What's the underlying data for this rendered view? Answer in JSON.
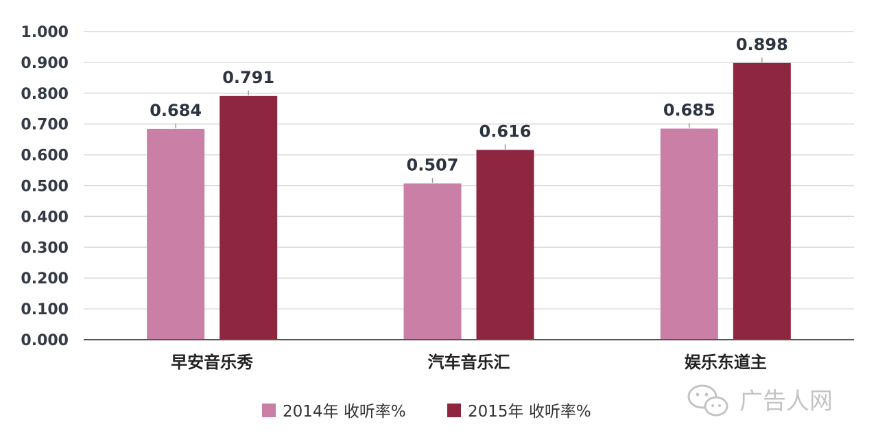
{
  "chart_data": {
    "type": "bar",
    "title": "",
    "xlabel": "",
    "ylabel": "",
    "categories": [
      "早安音乐秀",
      "汽车音乐汇",
      "娱乐东道主"
    ],
    "series": [
      {
        "name": "2014年 收听率%",
        "values": [
          0.684,
          0.507,
          0.685
        ],
        "color": "#c97fa6"
      },
      {
        "name": "2015年 收听率%",
        "values": [
          0.791,
          0.616,
          0.898
        ],
        "color": "#8e2640"
      }
    ],
    "ylim": [
      0,
      1.0
    ],
    "yticks": [
      0.0,
      0.1,
      0.2,
      0.3,
      0.4,
      0.5,
      0.6,
      0.7,
      0.8,
      0.9,
      1.0
    ],
    "ytick_labels": [
      "0.000",
      "0.100",
      "0.200",
      "0.300",
      "0.400",
      "0.500",
      "0.600",
      "0.700",
      "0.800",
      "0.900",
      "1.000"
    ],
    "data_labels": [
      [
        "0.684",
        "0.507",
        "0.685"
      ],
      [
        "0.791",
        "0.616",
        "0.898"
      ]
    ],
    "grid": true,
    "legend_position": "bottom"
  },
  "watermark": {
    "text": "广告人网",
    "icon": "wechat-icon"
  }
}
